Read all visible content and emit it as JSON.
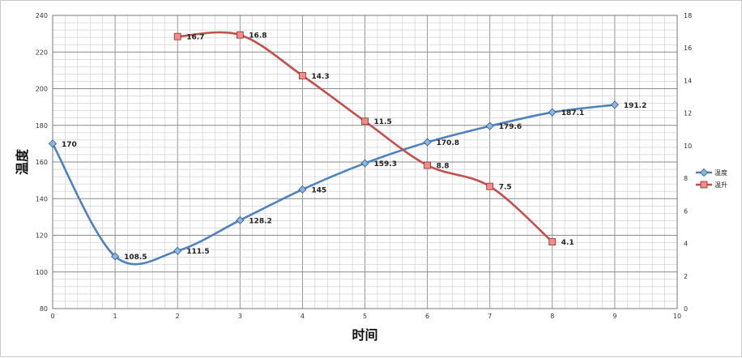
{
  "chart_data": {
    "type": "line",
    "xlabel": "时间",
    "ylabel": "温度",
    "xlim": [
      0,
      10
    ],
    "ylim": [
      80,
      240
    ],
    "y2lim": [
      0,
      18
    ],
    "x_ticks": [
      0,
      1,
      2,
      3,
      4,
      5,
      6,
      7,
      8,
      9,
      10
    ],
    "y_ticks": [
      80,
      100,
      120,
      140,
      160,
      180,
      200,
      220,
      240
    ],
    "y2_ticks": [
      0,
      2,
      4,
      6,
      8,
      10,
      12,
      14,
      16,
      18
    ],
    "grid": true,
    "smooth": true,
    "legend_position": "right",
    "series": [
      {
        "name": "温度",
        "axis": "left",
        "color": "#4f81bd",
        "marker": "diamond",
        "x": [
          0,
          1,
          2,
          3,
          4,
          5,
          6,
          7,
          8,
          9
        ],
        "values": [
          170,
          108.5,
          111.5,
          128.2,
          145,
          159.3,
          170.8,
          179.6,
          187.1,
          191.2
        ],
        "labels": [
          "170",
          "108.5",
          "111.5",
          "128.2",
          "145",
          "159.3",
          "170.8",
          "179.6",
          "187.1",
          "191.2"
        ]
      },
      {
        "name": "温升",
        "axis": "right",
        "color": "#c0504d",
        "marker": "square",
        "x": [
          2,
          3,
          4,
          5,
          6,
          7,
          8
        ],
        "values": [
          16.7,
          16.8,
          14.3,
          11.5,
          8.8,
          7.5,
          4.1
        ],
        "labels": [
          "16.7",
          "16.8",
          "14.3",
          "11.5",
          "8.8",
          "7.5",
          "4.1"
        ]
      }
    ]
  }
}
